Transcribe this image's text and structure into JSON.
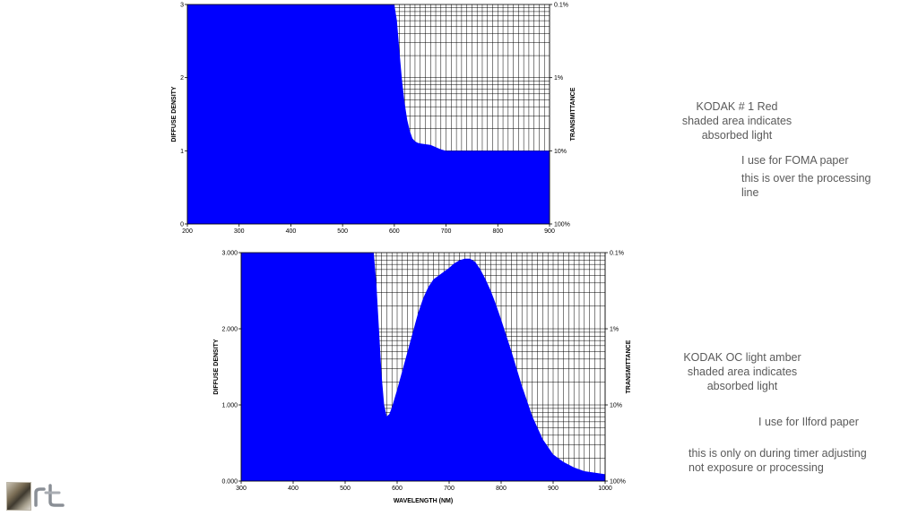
{
  "chart_data": [
    {
      "type": "area",
      "title": "",
      "xlabel": "",
      "ylabel": "DIFFUSE DENSITY",
      "y2label": "TRANSMITTANCE",
      "xlim": [
        200,
        900
      ],
      "ylim": [
        0,
        3
      ],
      "x_ticks": [
        "200",
        "300",
        "400",
        "500",
        "600",
        "700",
        "800",
        "900"
      ],
      "y_ticks": [
        "0",
        "1",
        "2",
        "3"
      ],
      "y2_ticks": [
        "100%",
        "10%",
        "1%",
        "0.1%"
      ],
      "grid": true,
      "fill_color": "#0000ff",
      "series": [
        {
          "x": [
            200,
            600,
            605,
            610,
            615,
            620,
            625,
            630,
            635,
            640,
            645,
            650,
            660,
            670,
            680,
            690,
            700,
            750,
            800,
            850,
            900
          ],
          "y": [
            3.0,
            3.0,
            2.78,
            2.35,
            1.95,
            1.65,
            1.42,
            1.27,
            1.17,
            1.13,
            1.11,
            1.1,
            1.09,
            1.08,
            1.05,
            1.02,
            1.0,
            1.0,
            1.0,
            1.0,
            1.0
          ]
        }
      ]
    },
    {
      "type": "area",
      "title": "",
      "xlabel": "WAVELENGTH (NM)",
      "ylabel": "DIFFUSE DENSITY",
      "y2label": "TRANSMITTANCE",
      "xlim": [
        300,
        1000
      ],
      "ylim": [
        0,
        3
      ],
      "x_ticks": [
        "300",
        "400",
        "500",
        "600",
        "700",
        "800",
        "900",
        "1000"
      ],
      "y_ticks": [
        "0.000",
        "1.000",
        "2.000",
        "3.000"
      ],
      "y2_ticks": [
        "100%",
        "10%",
        "1%",
        "0.1%"
      ],
      "grid": true,
      "fill_color": "#0000ff",
      "series": [
        {
          "x": [
            300,
            555,
            560,
            565,
            570,
            575,
            580,
            585,
            590,
            600,
            610,
            620,
            630,
            640,
            650,
            660,
            670,
            680,
            690,
            700,
            710,
            720,
            730,
            740,
            750,
            760,
            770,
            780,
            790,
            800,
            820,
            840,
            860,
            880,
            900,
            920,
            940,
            960,
            980,
            1000
          ],
          "y": [
            3.0,
            3.0,
            2.6,
            2.0,
            1.4,
            1.0,
            0.85,
            0.88,
            0.97,
            1.2,
            1.45,
            1.7,
            1.95,
            2.2,
            2.4,
            2.55,
            2.65,
            2.7,
            2.75,
            2.8,
            2.86,
            2.9,
            2.92,
            2.92,
            2.88,
            2.78,
            2.65,
            2.5,
            2.32,
            2.12,
            1.7,
            1.25,
            0.85,
            0.55,
            0.35,
            0.25,
            0.18,
            0.13,
            0.11,
            0.09
          ]
        }
      ]
    }
  ],
  "notes": {
    "filter1_name": "KODAK # 1 Red\nshaded area indicates\nabsorbed light",
    "filter1_use": "I use for FOMA paper",
    "filter1_detail": "this is over the processing\nline",
    "filter2_name": "KODAK OC light amber\nshaded area indicates\nabsorbed light",
    "filter2_use": "I use for Ilford paper",
    "filter2_detail": "this is only on during timer adjusting\nnot exposure or processing"
  },
  "icons": [
    "photo-thumbnail",
    "logo"
  ]
}
